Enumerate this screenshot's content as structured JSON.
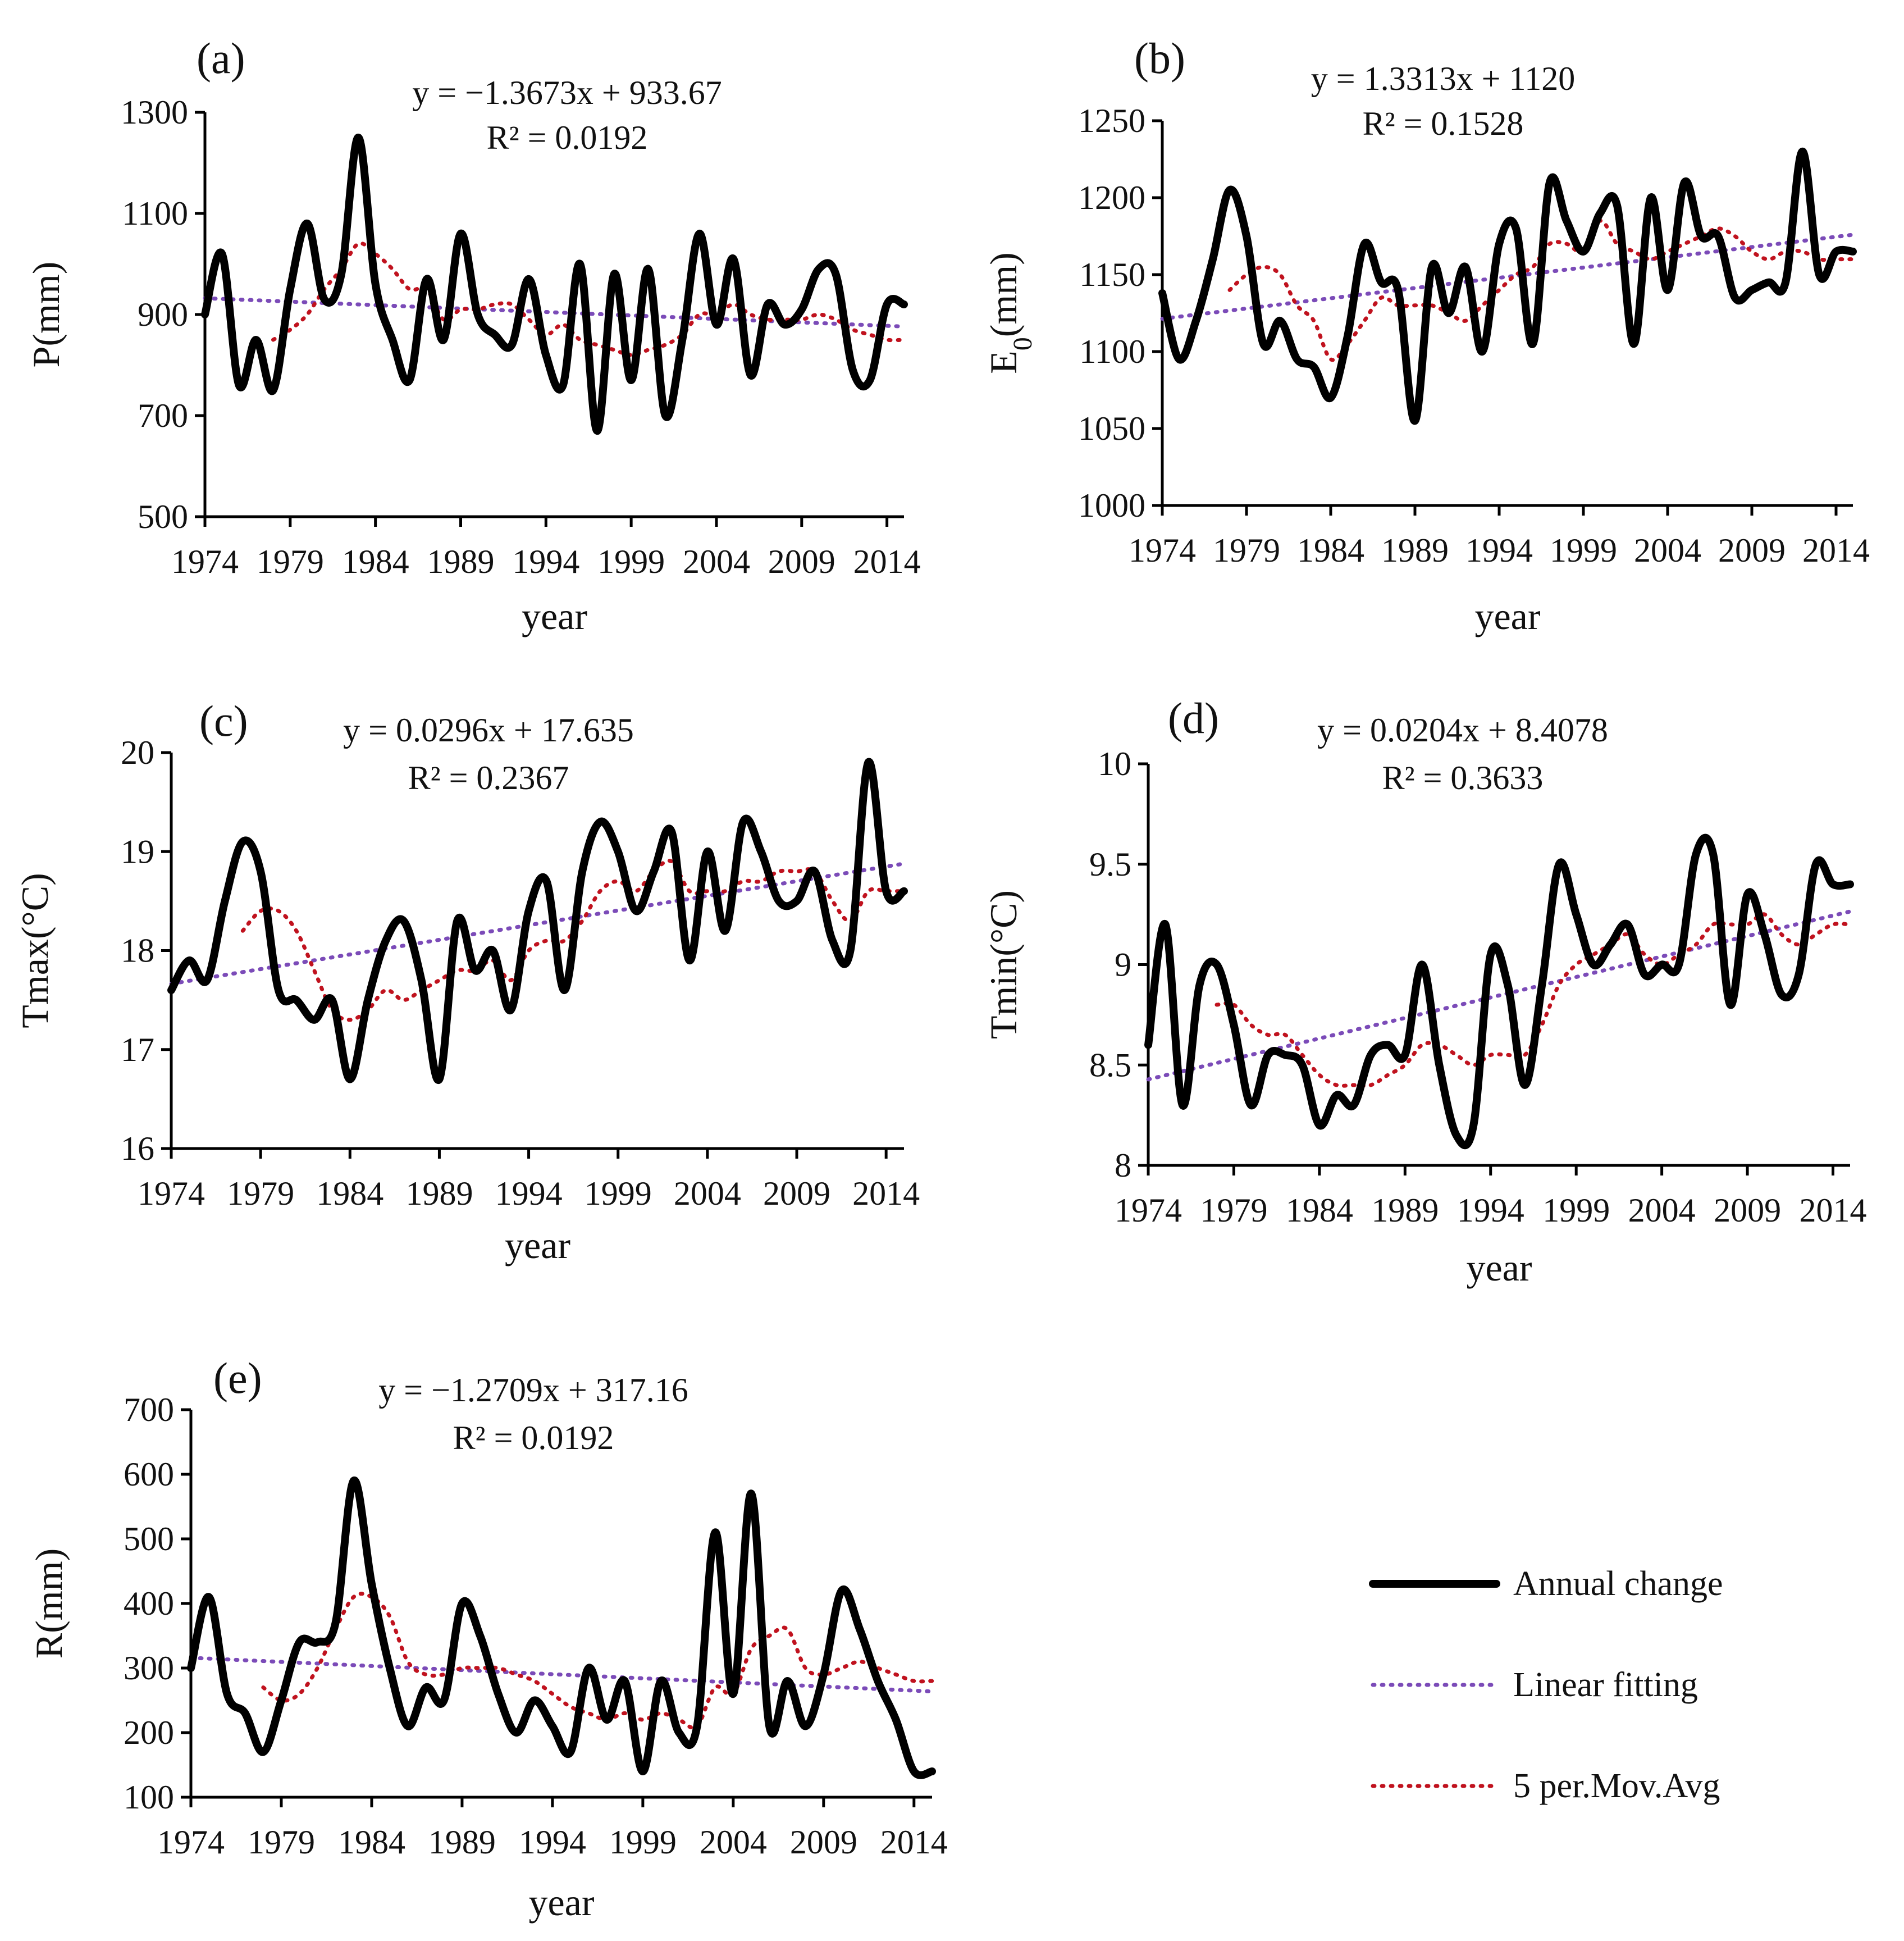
{
  "chart_data": [
    {
      "panel": "(a)",
      "type": "line",
      "ylabel": "P(mm)",
      "ylabel_sub": "",
      "ylabel_tail": "",
      "xlabel": "year",
      "equation": "y = −1.3673x + 933.67",
      "r2": "R² = 0.0192",
      "ylim": [
        500,
        1300
      ],
      "yticks": [
        500,
        700,
        900,
        1100,
        1300
      ],
      "xlim": [
        1974,
        2015
      ],
      "xticks": [
        1974,
        1979,
        1984,
        1989,
        1994,
        1999,
        2004,
        2009,
        2014
      ],
      "fit": {
        "slope": -1.3673,
        "intercept": 933.67
      },
      "x": [
        1974,
        1975,
        1976,
        1977,
        1978,
        1979,
        1980,
        1981,
        1982,
        1983,
        1984,
        1985,
        1986,
        1987,
        1988,
        1989,
        1990,
        1991,
        1992,
        1993,
        1994,
        1995,
        1996,
        1997,
        1998,
        1999,
        2000,
        2001,
        2002,
        2003,
        2004,
        2005,
        2006,
        2007,
        2008,
        2009,
        2010,
        2011,
        2012,
        2013,
        2014,
        2015
      ],
      "values": [
        900,
        1020,
        760,
        850,
        750,
        950,
        1080,
        930,
        980,
        1250,
        960,
        850,
        770,
        970,
        850,
        1060,
        900,
        860,
        840,
        970,
        820,
        760,
        1000,
        670,
        980,
        770,
        990,
        700,
        850,
        1060,
        880,
        1010,
        780,
        920,
        880,
        910,
        990,
        980,
        790,
        770,
        920,
        920
      ],
      "moving_avg": [
        null,
        null,
        null,
        null,
        850,
        870,
        900,
        950,
        990,
        1040,
        1020,
        990,
        950,
        950,
        890,
        910,
        910,
        920,
        920,
        890,
        860,
        880,
        850,
        840,
        830,
        820,
        830,
        840,
        860,
        900,
        900,
        920,
        900,
        890,
        890,
        890,
        900,
        890,
        870,
        860,
        850,
        850
      ]
    },
    {
      "panel": "(b)",
      "type": "line",
      "ylabel": "E",
      "ylabel_sub": "0",
      "ylabel_tail": "(mm)",
      "xlabel": "year",
      "equation": "y = 1.3313x + 1120",
      "r2": "R² = 0.1528",
      "ylim": [
        1000,
        1250
      ],
      "yticks": [
        1000,
        1050,
        1100,
        1150,
        1200,
        1250
      ],
      "xlim": [
        1974,
        2015
      ],
      "xticks": [
        1974,
        1979,
        1984,
        1989,
        1994,
        1999,
        2004,
        2009,
        2014
      ],
      "fit": {
        "slope": 1.3313,
        "intercept": 1120
      },
      "x": [
        1974,
        1975,
        1976,
        1977,
        1978,
        1979,
        1980,
        1981,
        1982,
        1983,
        1984,
        1985,
        1986,
        1987,
        1988,
        1989,
        1990,
        1991,
        1992,
        1993,
        1994,
        1995,
        1996,
        1997,
        1998,
        1999,
        2000,
        2001,
        2002,
        2003,
        2004,
        2005,
        2006,
        2007,
        2008,
        2009,
        2010,
        2011,
        2012,
        2013,
        2014,
        2015
      ],
      "values": [
        1138,
        1095,
        1120,
        1160,
        1205,
        1175,
        1105,
        1120,
        1095,
        1090,
        1070,
        1110,
        1170,
        1145,
        1140,
        1055,
        1155,
        1125,
        1155,
        1100,
        1170,
        1180,
        1105,
        1210,
        1185,
        1165,
        1190,
        1195,
        1105,
        1200,
        1140,
        1210,
        1175,
        1175,
        1135,
        1140,
        1145,
        1145,
        1230,
        1150,
        1165,
        1165
      ],
      "moving_avg": [
        null,
        null,
        null,
        null,
        1140,
        1150,
        1155,
        1150,
        1130,
        1120,
        1095,
        1105,
        1120,
        1135,
        1130,
        1130,
        1130,
        1125,
        1120,
        1130,
        1140,
        1150,
        1155,
        1170,
        1170,
        1165,
        1185,
        1170,
        1165,
        1160,
        1165,
        1170,
        1175,
        1180,
        1175,
        1165,
        1160,
        1165,
        1165,
        1160,
        1160,
        1160
      ]
    },
    {
      "panel": "(c)",
      "type": "line",
      "ylabel": "Tmax(°C)",
      "ylabel_sub": "",
      "ylabel_tail": "",
      "xlabel": "year",
      "equation": "y = 0.0296x + 17.635",
      "r2": "R² = 0.2367",
      "ylim": [
        16,
        20
      ],
      "yticks": [
        16,
        17,
        18,
        19,
        20
      ],
      "xlim": [
        1974,
        2015
      ],
      "xticks": [
        1974,
        1979,
        1984,
        1989,
        1994,
        1999,
        2004,
        2009,
        2014
      ],
      "fit": {
        "slope": 0.0296,
        "intercept": 17.635
      },
      "x": [
        1974,
        1975,
        1976,
        1977,
        1978,
        1979,
        1980,
        1981,
        1982,
        1983,
        1984,
        1985,
        1986,
        1987,
        1988,
        1989,
        1990,
        1991,
        1992,
        1993,
        1994,
        1995,
        1996,
        1997,
        1998,
        1999,
        2000,
        2001,
        2002,
        2003,
        2004,
        2005,
        2006,
        2007,
        2008,
        2009,
        2010,
        2011,
        2012,
        2013,
        2014,
        2015
      ],
      "values": [
        17.6,
        17.9,
        17.7,
        18.5,
        19.1,
        18.8,
        17.6,
        17.5,
        17.3,
        17.5,
        16.7,
        17.5,
        18.1,
        18.3,
        17.7,
        16.7,
        18.3,
        17.8,
        18.0,
        17.4,
        18.4,
        18.7,
        17.6,
        18.8,
        19.3,
        19.0,
        18.4,
        18.8,
        19.2,
        17.9,
        19.0,
        18.2,
        19.3,
        19.0,
        18.5,
        18.5,
        18.8,
        18.1,
        18.0,
        19.9,
        18.6,
        18.6
      ],
      "moving_avg": [
        null,
        null,
        null,
        null,
        18.2,
        18.4,
        18.4,
        18.2,
        17.8,
        17.4,
        17.3,
        17.4,
        17.6,
        17.5,
        17.6,
        17.7,
        17.8,
        17.8,
        17.9,
        17.7,
        18.0,
        18.1,
        18.1,
        18.3,
        18.6,
        18.7,
        18.6,
        18.8,
        18.9,
        18.6,
        18.6,
        18.6,
        18.7,
        18.7,
        18.8,
        18.8,
        18.8,
        18.5,
        18.3,
        18.6,
        18.6,
        18.6
      ]
    },
    {
      "panel": "(d)",
      "type": "line",
      "ylabel": "Tmin(°C)",
      "ylabel_sub": "",
      "ylabel_tail": "",
      "xlabel": "year",
      "equation": "y = 0.0204x + 8.4078",
      "r2": "R² = 0.3633",
      "ylim": [
        8,
        10
      ],
      "yticks": [
        8,
        8.5,
        9,
        9.5,
        10
      ],
      "xlim": [
        1974,
        2015
      ],
      "xticks": [
        1974,
        1979,
        1984,
        1989,
        1994,
        1999,
        2004,
        2009,
        2014
      ],
      "fit": {
        "slope": 0.0204,
        "intercept": 8.4078
      },
      "x": [
        1974,
        1975,
        1976,
        1977,
        1978,
        1979,
        1980,
        1981,
        1982,
        1983,
        1984,
        1985,
        1986,
        1987,
        1988,
        1989,
        1990,
        1991,
        1992,
        1993,
        1994,
        1995,
        1996,
        1997,
        1998,
        1999,
        2000,
        2001,
        2002,
        2003,
        2004,
        2005,
        2006,
        2007,
        2008,
        2009,
        2010,
        2011,
        2012,
        2013,
        2014,
        2015
      ],
      "values": [
        8.6,
        9.2,
        8.3,
        8.9,
        9.0,
        8.7,
        8.3,
        8.55,
        8.55,
        8.5,
        8.2,
        8.35,
        8.3,
        8.55,
        8.6,
        8.55,
        9.0,
        8.5,
        8.15,
        8.2,
        9.05,
        8.9,
        8.4,
        8.9,
        9.5,
        9.25,
        9.0,
        9.1,
        9.2,
        8.95,
        9.0,
        9.0,
        9.55,
        9.55,
        8.8,
        9.35,
        9.15,
        8.85,
        8.95,
        9.5,
        9.4,
        9.4
      ],
      "moving_avg": [
        null,
        null,
        null,
        null,
        8.8,
        8.8,
        8.7,
        8.65,
        8.65,
        8.55,
        8.45,
        8.4,
        8.4,
        8.4,
        8.45,
        8.5,
        8.6,
        8.6,
        8.55,
        8.5,
        8.55,
        8.55,
        8.55,
        8.7,
        8.9,
        9.0,
        9.05,
        9.1,
        9.15,
        9.05,
        9.0,
        9.05,
        9.1,
        9.2,
        9.2,
        9.2,
        9.25,
        9.15,
        9.1,
        9.15,
        9.2,
        9.2
      ]
    },
    {
      "panel": "(e)",
      "type": "line",
      "ylabel": "R(mm)",
      "ylabel_sub": "",
      "ylabel_tail": "",
      "xlabel": "year",
      "equation": "y = −1.2709x + 317.16",
      "r2": "R² = 0.0192",
      "ylim": [
        100,
        700
      ],
      "yticks": [
        100,
        200,
        300,
        400,
        500,
        600,
        700
      ],
      "xlim": [
        1974,
        2015
      ],
      "xticks": [
        1974,
        1979,
        1984,
        1989,
        1994,
        1999,
        2004,
        2009,
        2014
      ],
      "fit": {
        "slope": -1.2709,
        "intercept": 317.16
      },
      "x": [
        1974,
        1975,
        1976,
        1977,
        1978,
        1979,
        1980,
        1981,
        1982,
        1983,
        1984,
        1985,
        1986,
        1987,
        1988,
        1989,
        1990,
        1991,
        1992,
        1993,
        1994,
        1995,
        1996,
        1997,
        1998,
        1999,
        2000,
        2001,
        2002,
        2003,
        2004,
        2005,
        2006,
        2007,
        2008,
        2009,
        2010,
        2011,
        2012,
        2013,
        2014,
        2015
      ],
      "values": [
        300,
        410,
        260,
        230,
        170,
        250,
        340,
        340,
        370,
        590,
        430,
        300,
        210,
        270,
        250,
        400,
        350,
        260,
        200,
        250,
        210,
        170,
        300,
        220,
        280,
        140,
        280,
        200,
        210,
        510,
        260,
        570,
        210,
        280,
        210,
        290,
        420,
        360,
        280,
        220,
        140,
        140
      ],
      "moving_avg": [
        null,
        null,
        null,
        null,
        270,
        250,
        260,
        300,
        360,
        410,
        410,
        380,
        310,
        290,
        290,
        300,
        300,
        300,
        290,
        280,
        260,
        240,
        230,
        220,
        230,
        220,
        230,
        220,
        210,
        270,
        260,
        330,
        350,
        360,
        300,
        290,
        300,
        310,
        300,
        290,
        280,
        280
      ]
    }
  ],
  "legend": {
    "annual": "Annual change",
    "fit": "Linear fitting",
    "mavg": "5 per.Mov.Avg"
  },
  "colors": {
    "annual": "#000000",
    "fit": "#7b4bb8",
    "mavg": "#c0121e"
  }
}
